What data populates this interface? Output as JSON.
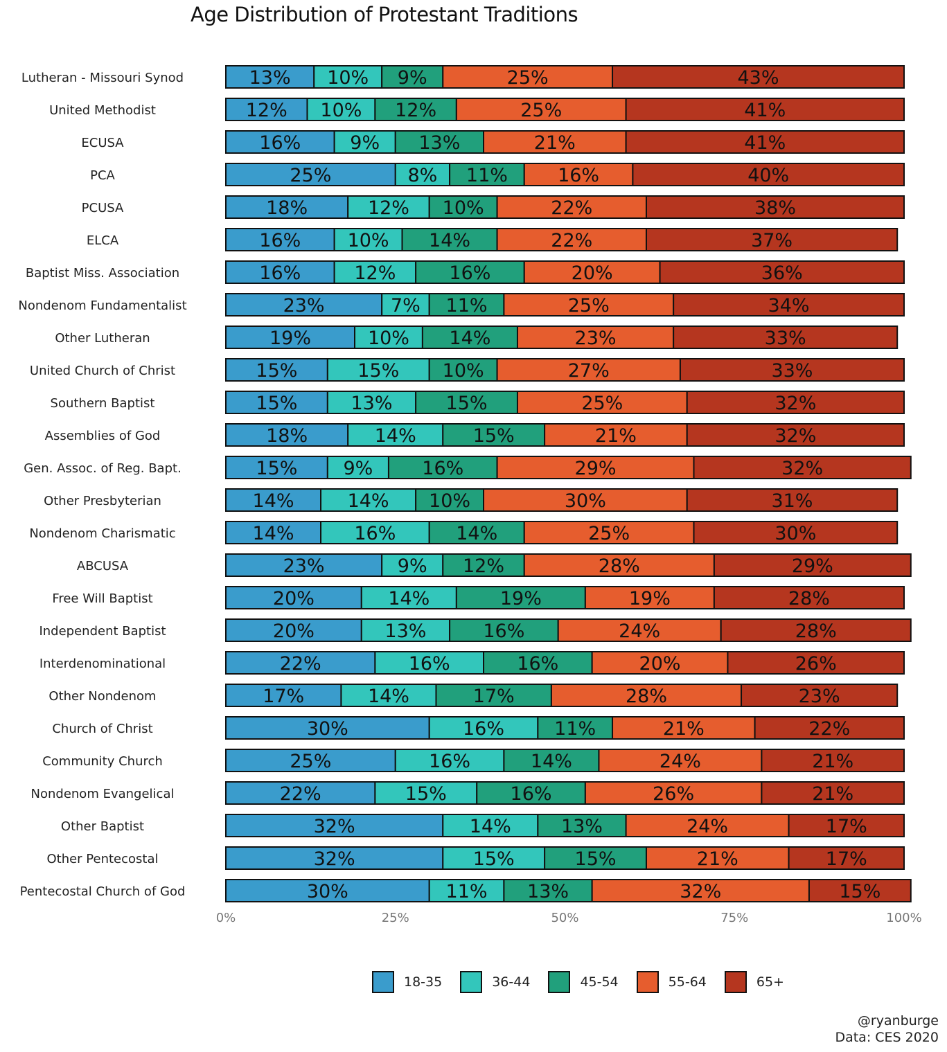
{
  "title": "Age Distribution of Protestant Traditions",
  "caption": {
    "handle": "@ryanburge",
    "source": "Data: CES 2020"
  },
  "chart_data": {
    "type": "bar",
    "orientation": "horizontal",
    "stacked": true,
    "categories": [
      "Lutheran - Missouri Synod",
      "United Methodist",
      "ECUSA",
      "PCA",
      "PCUSA",
      "ELCA",
      "Baptist Miss. Association",
      "Nondenom Fundamentalist",
      "Other Lutheran",
      "United Church of Christ",
      "Southern Baptist",
      "Assemblies of God",
      "Gen. Assoc. of Reg. Bapt.",
      "Other Presbyterian",
      "Nondenom Charismatic",
      "ABCUSA",
      "Free Will Baptist",
      "Independent Baptist",
      "Interdenominational",
      "Other Nondenom",
      "Church of Christ",
      "Community Church",
      "Nondenom Evangelical",
      "Other Baptist",
      "Other Pentecostal",
      "Pentecostal Church of God"
    ],
    "series": [
      {
        "name": "18-35",
        "color": "#3a9ccc",
        "values": [
          13,
          12,
          16,
          25,
          18,
          16,
          16,
          23,
          19,
          15,
          15,
          18,
          15,
          14,
          14,
          23,
          20,
          20,
          22,
          17,
          30,
          25,
          22,
          32,
          32,
          30
        ]
      },
      {
        "name": "36-44",
        "color": "#33c6bb",
        "values": [
          10,
          10,
          9,
          8,
          12,
          10,
          12,
          7,
          10,
          15,
          13,
          14,
          9,
          14,
          16,
          9,
          14,
          13,
          16,
          14,
          16,
          16,
          15,
          14,
          15,
          11
        ]
      },
      {
        "name": "45-54",
        "color": "#21a07c",
        "values": [
          9,
          12,
          13,
          11,
          10,
          14,
          16,
          11,
          14,
          10,
          15,
          15,
          16,
          10,
          14,
          12,
          19,
          16,
          16,
          17,
          11,
          14,
          16,
          13,
          15,
          13
        ]
      },
      {
        "name": "55-64",
        "color": "#e65d2e",
        "values": [
          25,
          25,
          21,
          16,
          22,
          22,
          20,
          25,
          23,
          27,
          25,
          21,
          29,
          30,
          25,
          28,
          19,
          24,
          20,
          28,
          21,
          24,
          26,
          24,
          21,
          32
        ]
      },
      {
        "name": "65+",
        "color": "#b5361f",
        "values": [
          43,
          41,
          41,
          40,
          38,
          37,
          36,
          34,
          33,
          33,
          32,
          32,
          32,
          31,
          30,
          29,
          28,
          28,
          26,
          23,
          22,
          21,
          21,
          17,
          17,
          15
        ]
      }
    ],
    "x_ticks": [
      "0%",
      "25%",
      "50%",
      "75%",
      "100%"
    ],
    "xlim": [
      0,
      100
    ],
    "xlabel": "",
    "ylabel": "",
    "grid": false,
    "legend_position": "bottom"
  }
}
